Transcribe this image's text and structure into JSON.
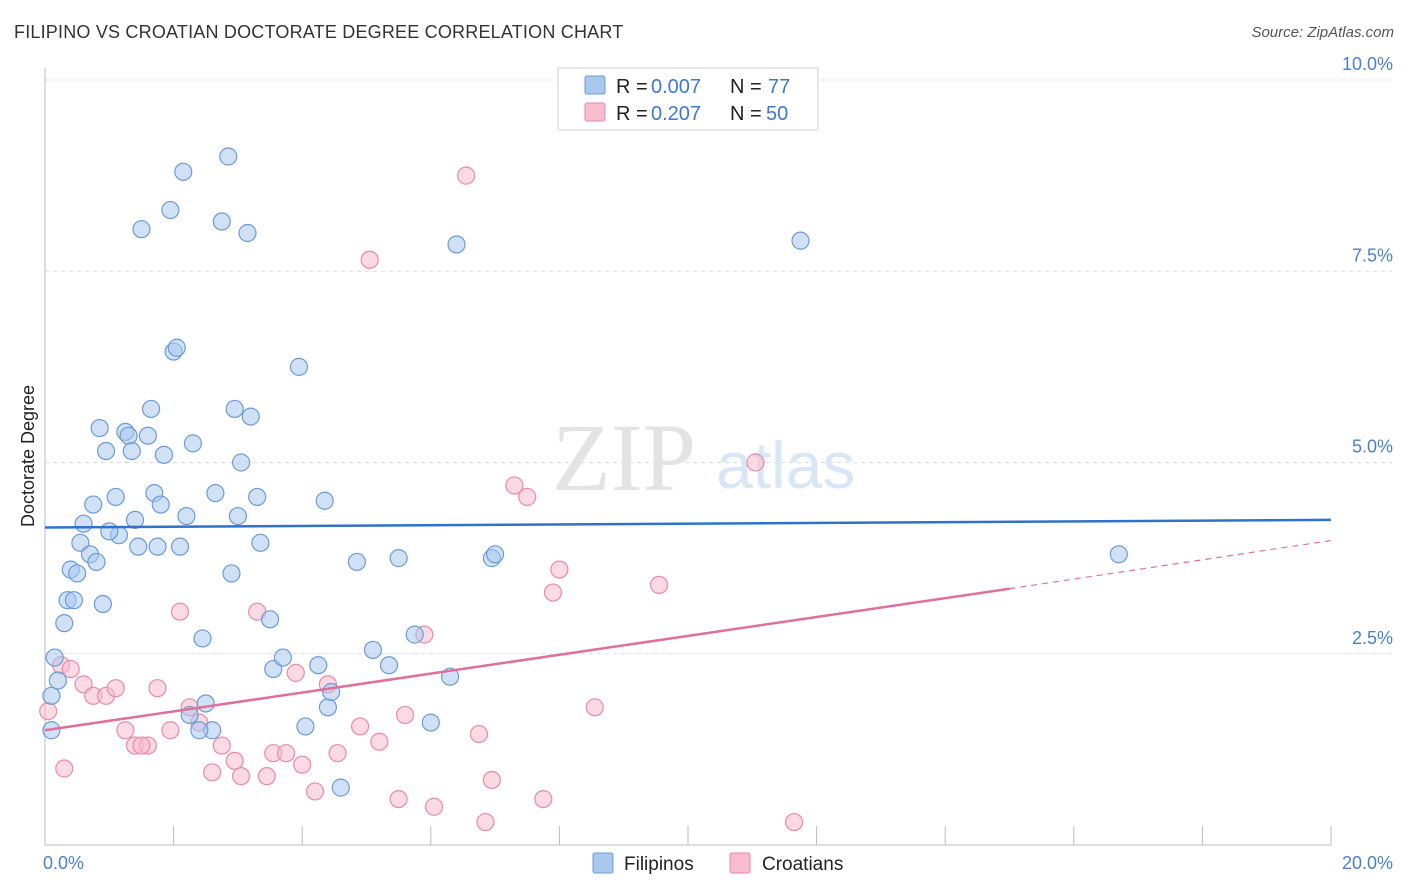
{
  "title": "FILIPINO VS CROATIAN DOCTORATE DEGREE CORRELATION CHART",
  "source": "Source: ZipAtlas.com",
  "watermark": {
    "zip": "ZIP",
    "atlas": "atlas"
  },
  "colors": {
    "blue_fill": "#a9c8ee",
    "blue_stroke": "#6b9bd6",
    "blue_line": "#2f72c8",
    "pink_fill": "#f7bccd",
    "pink_stroke": "#e98aa8",
    "pink_line": "#e0709a",
    "grid": "#dcdcdc",
    "tick_text": "#4a7fcb"
  },
  "legend": {
    "rows": [
      {
        "r_label": "R =",
        "r_value": "0.007",
        "n_label": "N =",
        "n_value": "77"
      },
      {
        "r_label": "R =",
        "r_value": "0.207",
        "n_label": "N =",
        "n_value": "50"
      }
    ]
  },
  "chart_data": {
    "type": "scatter",
    "title": "FILIPINO VS CROATIAN DOCTORATE DEGREE CORRELATION CHART",
    "xlabel": "",
    "ylabel": "Doctorate Degree",
    "xlim": [
      0,
      20
    ],
    "ylim": [
      0,
      10
    ],
    "x_tick_labels": {
      "left": "0.0%",
      "right": "20.0%"
    },
    "y_ticks": [
      {
        "value": 2.5,
        "label": "2.5%"
      },
      {
        "value": 5.0,
        "label": "5.0%"
      },
      {
        "value": 7.5,
        "label": "7.5%"
      },
      {
        "value": 10.0,
        "label": "10.0%"
      }
    ],
    "grid": true,
    "legend_position": "top-center",
    "series": [
      {
        "name": "Filipinos",
        "r": 0.007,
        "n": 77,
        "trend": {
          "x0": 0,
          "y0": 4.15,
          "x1": 20,
          "y1": 4.25
        },
        "points": [
          [
            0.1,
            1.5
          ],
          [
            0.1,
            1.95
          ],
          [
            0.15,
            2.45
          ],
          [
            0.2,
            2.15
          ],
          [
            0.3,
            2.9
          ],
          [
            0.35,
            3.2
          ],
          [
            0.4,
            3.6
          ],
          [
            0.45,
            3.2
          ],
          [
            0.5,
            3.55
          ],
          [
            0.55,
            3.95
          ],
          [
            0.6,
            4.2
          ],
          [
            0.7,
            3.8
          ],
          [
            0.75,
            4.45
          ],
          [
            0.8,
            3.7
          ],
          [
            0.85,
            5.45
          ],
          [
            0.9,
            3.15
          ],
          [
            0.95,
            5.15
          ],
          [
            1.1,
            4.55
          ],
          [
            1.15,
            4.05
          ],
          [
            1.25,
            5.4
          ],
          [
            1.3,
            5.35
          ],
          [
            1.35,
            5.15
          ],
          [
            1.4,
            4.25
          ],
          [
            1.45,
            3.9
          ],
          [
            1.5,
            8.05
          ],
          [
            1.6,
            5.35
          ],
          [
            1.65,
            5.7
          ],
          [
            1.7,
            4.6
          ],
          [
            1.75,
            3.9
          ],
          [
            1.8,
            4.45
          ],
          [
            1.85,
            5.1
          ],
          [
            1.95,
            8.3
          ],
          [
            2.0,
            6.45
          ],
          [
            2.05,
            6.5
          ],
          [
            2.1,
            3.9
          ],
          [
            2.15,
            8.8
          ],
          [
            2.2,
            4.3
          ],
          [
            2.3,
            5.25
          ],
          [
            2.45,
            2.7
          ],
          [
            2.5,
            1.85
          ],
          [
            2.6,
            1.5
          ],
          [
            2.65,
            4.6
          ],
          [
            2.75,
            8.15
          ],
          [
            2.85,
            9.0
          ],
          [
            2.9,
            3.55
          ],
          [
            2.95,
            5.7
          ],
          [
            3.0,
            4.3
          ],
          [
            3.05,
            5.0
          ],
          [
            3.15,
            8.0
          ],
          [
            3.2,
            5.6
          ],
          [
            3.3,
            4.55
          ],
          [
            3.35,
            3.95
          ],
          [
            3.5,
            2.95
          ],
          [
            3.55,
            2.3
          ],
          [
            3.7,
            2.45
          ],
          [
            3.95,
            6.25
          ],
          [
            4.05,
            1.55
          ],
          [
            4.25,
            2.35
          ],
          [
            4.35,
            4.5
          ],
          [
            4.4,
            1.8
          ],
          [
            4.45,
            2.0
          ],
          [
            4.6,
            0.75
          ],
          [
            4.85,
            3.7
          ],
          [
            5.1,
            2.55
          ],
          [
            5.35,
            2.35
          ],
          [
            5.5,
            3.75
          ],
          [
            5.75,
            2.75
          ],
          [
            6.0,
            1.6
          ],
          [
            6.3,
            2.2
          ],
          [
            6.4,
            7.85
          ],
          [
            6.95,
            3.75
          ],
          [
            7.0,
            3.8
          ],
          [
            11.75,
            7.9
          ],
          [
            16.7,
            3.8
          ],
          [
            2.4,
            1.5
          ],
          [
            2.25,
            1.7
          ],
          [
            1.0,
            4.1
          ]
        ]
      },
      {
        "name": "Croatians",
        "r": 0.207,
        "n": 50,
        "trend": {
          "x0": 0,
          "y0": 1.5,
          "x1": 15,
          "y1": 3.35
        },
        "trend_extension": {
          "x0": 15,
          "y0": 3.35,
          "x1": 20,
          "y1": 3.98
        },
        "points": [
          [
            0.05,
            1.75
          ],
          [
            0.25,
            2.35
          ],
          [
            0.4,
            2.3
          ],
          [
            0.6,
            2.1
          ],
          [
            0.75,
            1.95
          ],
          [
            0.95,
            1.95
          ],
          [
            1.1,
            2.05
          ],
          [
            1.25,
            1.5
          ],
          [
            1.4,
            1.3
          ],
          [
            1.6,
            1.3
          ],
          [
            1.75,
            2.05
          ],
          [
            1.95,
            1.5
          ],
          [
            2.1,
            3.05
          ],
          [
            2.25,
            1.8
          ],
          [
            2.4,
            1.6
          ],
          [
            2.6,
            0.95
          ],
          [
            2.75,
            1.3
          ],
          [
            2.95,
            1.1
          ],
          [
            3.05,
            0.9
          ],
          [
            3.3,
            3.05
          ],
          [
            3.45,
            0.9
          ],
          [
            3.55,
            1.2
          ],
          [
            3.75,
            1.2
          ],
          [
            3.9,
            2.25
          ],
          [
            4.0,
            1.05
          ],
          [
            4.2,
            0.7
          ],
          [
            4.4,
            2.1
          ],
          [
            4.55,
            1.2
          ],
          [
            4.9,
            1.55
          ],
          [
            5.05,
            7.65
          ],
          [
            5.2,
            1.35
          ],
          [
            5.5,
            0.6
          ],
          [
            5.6,
            1.7
          ],
          [
            5.9,
            2.75
          ],
          [
            6.05,
            0.5
          ],
          [
            6.55,
            8.75
          ],
          [
            6.75,
            1.45
          ],
          [
            6.85,
            0.3
          ],
          [
            6.95,
            0.85
          ],
          [
            7.3,
            4.7
          ],
          [
            7.5,
            4.55
          ],
          [
            7.75,
            0.6
          ],
          [
            7.9,
            3.3
          ],
          [
            8.0,
            3.6
          ],
          [
            8.55,
            1.8
          ],
          [
            9.55,
            3.4
          ],
          [
            11.05,
            5.0
          ],
          [
            11.65,
            0.3
          ],
          [
            0.3,
            1.0
          ],
          [
            1.5,
            1.3
          ]
        ]
      }
    ]
  },
  "bottom_legend": [
    "Filipinos",
    "Croatians"
  ]
}
